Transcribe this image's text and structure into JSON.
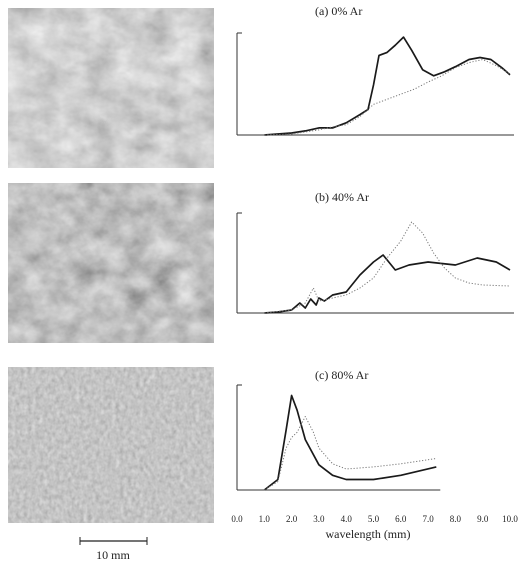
{
  "chart_data": [
    {
      "type": "line",
      "title": "(a)   0% Ar",
      "xlim": [
        0,
        10
      ],
      "ylim": [
        0,
        100
      ],
      "series": [
        {
          "style": "solid",
          "color": "#1a1a1a",
          "x": [
            1.0,
            1.5,
            2.0,
            2.5,
            3.0,
            3.5,
            4.0,
            4.5,
            4.8,
            5.0,
            5.2,
            5.5,
            5.8,
            6.1,
            6.4,
            6.8,
            7.2,
            7.6,
            8.0,
            8.5,
            8.9,
            9.3,
            9.7,
            10.0
          ],
          "values": [
            0,
            1,
            2,
            4,
            7,
            7,
            12,
            20,
            25,
            49,
            78,
            81,
            88,
            96,
            83,
            64,
            58,
            62,
            67,
            74,
            76,
            74,
            66,
            59
          ]
        },
        {
          "style": "dotted",
          "color": "#777777",
          "x": [
            1.0,
            2.0,
            3.0,
            3.5,
            4.0,
            4.5,
            5.0,
            5.5,
            6.0,
            6.5,
            7.0,
            7.5,
            8.0,
            8.5,
            9.0,
            9.5,
            10.0
          ],
          "values": [
            0,
            1,
            5,
            8,
            10,
            18,
            30,
            35,
            40,
            45,
            52,
            58,
            66,
            71,
            74,
            68,
            60
          ]
        }
      ]
    },
    {
      "type": "line",
      "title": "(b)   40% Ar",
      "xlim": [
        0,
        10
      ],
      "ylim": [
        0,
        100
      ],
      "series": [
        {
          "style": "solid",
          "color": "#1a1a1a",
          "x": [
            1.0,
            1.5,
            2.0,
            2.3,
            2.5,
            2.7,
            2.9,
            3.0,
            3.2,
            3.5,
            4.0,
            4.5,
            5.0,
            5.35,
            5.8,
            6.3,
            7.0,
            8.0,
            8.8,
            9.5,
            10.0
          ],
          "values": [
            0,
            1,
            3,
            10,
            5,
            14,
            8,
            15,
            12,
            18,
            21,
            38,
            51,
            58,
            43,
            48,
            51,
            48,
            55,
            51,
            43
          ]
        },
        {
          "style": "dotted",
          "color": "#777777",
          "x": [
            1.0,
            2.0,
            2.5,
            2.8,
            3.0,
            3.5,
            4.0,
            4.5,
            5.0,
            5.5,
            6.0,
            6.4,
            6.8,
            7.2,
            7.6,
            8.0,
            8.5,
            9.0,
            10.0
          ],
          "values": [
            0,
            3,
            10,
            25,
            12,
            15,
            18,
            25,
            35,
            55,
            72,
            91,
            80,
            60,
            45,
            35,
            30,
            28,
            27
          ]
        }
      ]
    },
    {
      "type": "line",
      "title": "(c)   80% Ar",
      "xlim": [
        0,
        10
      ],
      "ylim": [
        0,
        100
      ],
      "xlabel": "wavelength (mm)",
      "xticks": [
        {
          "value": 0,
          "label": "0.0"
        },
        {
          "value": 1,
          "label": "1.0"
        },
        {
          "value": 2,
          "label": "2.0"
        },
        {
          "value": 3,
          "label": "3.0"
        },
        {
          "value": 4,
          "label": "4.0"
        },
        {
          "value": 5,
          "label": "5.0"
        },
        {
          "value": 6,
          "label": "6.0"
        },
        {
          "value": 7,
          "label": "7.0"
        },
        {
          "value": 8,
          "label": "8.0"
        },
        {
          "value": 9,
          "label": "9.0"
        },
        {
          "value": 10,
          "label": "10.0"
        }
      ],
      "series": [
        {
          "style": "solid",
          "color": "#1a1a1a",
          "x": [
            1.0,
            1.5,
            1.8,
            2.0,
            2.2,
            2.5,
            3.0,
            3.5,
            4.0,
            5.0,
            6.0,
            7.3
          ],
          "values": [
            0,
            10,
            57,
            90,
            76,
            48,
            24,
            14,
            10,
            10,
            14,
            22
          ]
        },
        {
          "style": "dotted",
          "color": "#777777",
          "x": [
            1.0,
            1.5,
            1.8,
            2.0,
            2.2,
            2.5,
            2.8,
            3.0,
            3.5,
            4.0,
            5.0,
            6.0,
            7.3
          ],
          "values": [
            0,
            8,
            40,
            50,
            55,
            70,
            55,
            40,
            25,
            20,
            22,
            25,
            30
          ]
        }
      ]
    }
  ],
  "scale_bar": "10 mm"
}
